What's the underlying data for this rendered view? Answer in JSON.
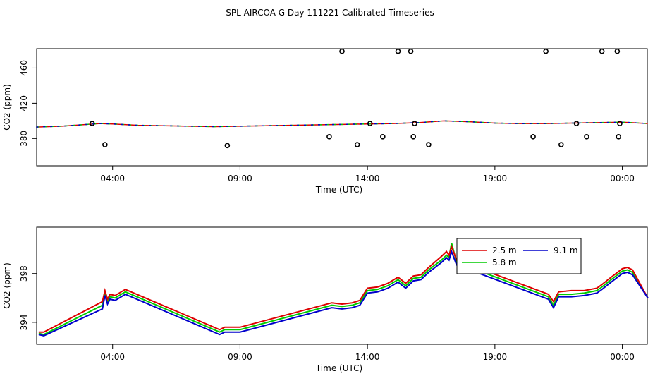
{
  "title": "SPL AIRCOA G  Day 111221  Calibrated Timeseries",
  "colors": {
    "2.5 m": "#dd0000",
    "5.8 m": "#00cc00",
    "9.1 m": "#0000cc",
    "points": "#000000"
  },
  "chart_data": [
    {
      "type": "line",
      "xlabel": "Time (UTC)",
      "ylabel": "CO2 (ppm)",
      "xlim": [
        1.02,
        24.98
      ],
      "ylim": [
        349,
        482
      ],
      "x_ticks": [
        "04:00",
        "09:00",
        "14:00",
        "19:00",
        "00:00"
      ],
      "y_ticks": [
        "380",
        "420",
        "460"
      ],
      "grid": false,
      "legend": "none",
      "line": {
        "x": [
          1,
          2,
          3,
          3.5,
          4,
          5,
          6,
          7,
          8,
          9,
          10,
          11,
          12,
          13,
          14,
          15,
          16,
          17,
          18,
          19,
          20,
          21,
          22,
          23,
          24,
          25
        ],
        "y": [
          393,
          394,
          396,
          397,
          396.5,
          395,
          394.5,
          394,
          393.5,
          394,
          394.5,
          395,
          395.5,
          396,
          396.5,
          397,
          398,
          400,
          399,
          397.5,
          397,
          397,
          397.5,
          398,
          398.5,
          397
        ]
      },
      "points": {
        "x": [
          3.2,
          3.7,
          8.5,
          12.5,
          13,
          13.6,
          14.1,
          14.6,
          15.2,
          15.7,
          15.8,
          15.85,
          16.4,
          20.5,
          21,
          21.6,
          22.2,
          22.6,
          23.2,
          23.8,
          23.85,
          23.9
        ],
        "y": [
          397,
          373,
          372,
          382,
          479,
          373,
          397,
          382,
          479,
          479,
          382,
          397,
          373,
          382,
          479,
          373,
          397,
          382,
          479,
          479,
          382,
          397
        ]
      }
    },
    {
      "type": "line",
      "xlabel": "Time (UTC)",
      "ylabel": "CO2 (ppm)",
      "xlim": [
        1.02,
        24.98
      ],
      "ylim": [
        392.2,
        401.8
      ],
      "x_ticks": [
        "04:00",
        "09:00",
        "14:00",
        "19:00",
        "00:00"
      ],
      "y_ticks": [
        "394",
        "398"
      ],
      "grid": false,
      "legend": "top-center",
      "series": [
        {
          "name": "2.5 m",
          "x": [
            1.1,
            1.3,
            3.6,
            3.7,
            3.8,
            3.9,
            4.1,
            4.5,
            8.2,
            8.4,
            8.7,
            9.0,
            12.6,
            13.0,
            13.4,
            13.7,
            14.0,
            14.4,
            14.8,
            15.2,
            15.5,
            15.8,
            16.1,
            16.4,
            16.9,
            17.1,
            17.2,
            17.3,
            17.5,
            21.1,
            21.3,
            21.5,
            22.0,
            22.5,
            23.0,
            23.2,
            23.5,
            24.0,
            24.2,
            24.4,
            25.0
          ],
          "y": [
            393.2,
            393.2,
            395.7,
            396.6,
            395.9,
            396.3,
            396.2,
            396.7,
            393.4,
            393.6,
            393.6,
            393.6,
            395.6,
            395.5,
            395.6,
            395.8,
            396.8,
            396.9,
            397.2,
            397.7,
            397.2,
            397.8,
            397.9,
            398.5,
            399.4,
            399.8,
            399.5,
            400.2,
            399.1,
            396.3,
            395.7,
            396.5,
            396.6,
            396.6,
            396.8,
            397.1,
            397.6,
            398.4,
            398.5,
            398.3,
            396.0
          ]
        },
        {
          "name": "5.8 m",
          "x": [
            1.1,
            1.3,
            3.6,
            3.7,
            3.8,
            3.9,
            4.1,
            4.5,
            8.2,
            8.4,
            8.7,
            9.0,
            12.6,
            13.0,
            13.4,
            13.7,
            14.0,
            14.4,
            14.8,
            15.2,
            15.5,
            15.8,
            16.1,
            16.4,
            16.9,
            17.1,
            17.2,
            17.3,
            17.5,
            21.1,
            21.3,
            21.5,
            22.0,
            22.5,
            23.0,
            23.2,
            23.5,
            24.0,
            24.2,
            24.4,
            25.0
          ],
          "y": [
            393.1,
            393.0,
            395.4,
            396.4,
            395.7,
            396.1,
            396.0,
            396.5,
            393.2,
            393.4,
            393.4,
            393.4,
            395.4,
            395.3,
            395.4,
            395.6,
            396.6,
            396.7,
            397.0,
            397.5,
            397.0,
            397.6,
            397.7,
            398.3,
            399.1,
            399.5,
            399.3,
            400.5,
            398.9,
            396.1,
            395.4,
            396.3,
            396.3,
            396.4,
            396.6,
            396.9,
            397.4,
            398.2,
            398.3,
            398.1,
            396.0
          ]
        },
        {
          "name": "9.1 m",
          "x": [
            1.1,
            1.3,
            3.6,
            3.7,
            3.8,
            3.9,
            4.1,
            4.5,
            8.2,
            8.4,
            8.7,
            9.0,
            12.6,
            13.0,
            13.4,
            13.7,
            14.0,
            14.4,
            14.8,
            15.2,
            15.5,
            15.8,
            16.1,
            16.4,
            16.9,
            17.1,
            17.2,
            17.3,
            17.5,
            21.1,
            21.3,
            21.5,
            22.0,
            22.5,
            23.0,
            23.2,
            23.5,
            24.0,
            24.2,
            24.4,
            25.0
          ],
          "y": [
            393.0,
            392.9,
            395.1,
            396.2,
            395.5,
            395.9,
            395.8,
            396.3,
            393.0,
            393.2,
            393.2,
            393.2,
            395.2,
            395.1,
            395.2,
            395.4,
            396.4,
            396.5,
            396.8,
            397.3,
            396.8,
            397.4,
            397.5,
            398.1,
            398.9,
            399.3,
            399.1,
            399.8,
            398.7,
            395.9,
            395.2,
            396.1,
            396.1,
            396.2,
            396.4,
            396.7,
            397.2,
            398.0,
            398.1,
            397.9,
            396.0
          ]
        }
      ]
    }
  ]
}
